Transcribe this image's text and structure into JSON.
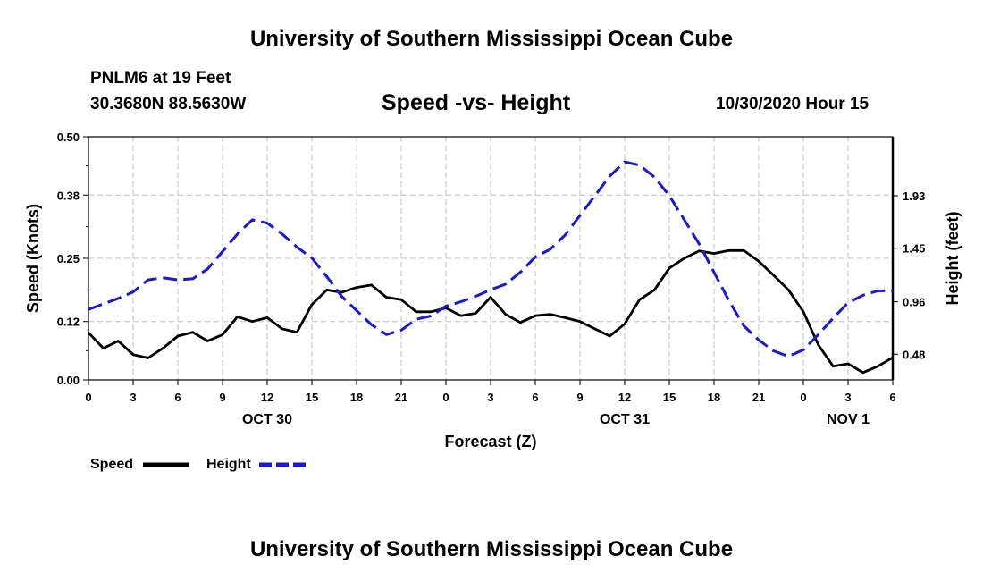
{
  "header": {
    "title": "University of Southern Mississippi Ocean Cube",
    "station": "PNLM6 at 19 Feet",
    "coords": "30.3680N 88.5630W",
    "chart_title": "Speed -vs- Height",
    "date": "10/30/2020 Hour 15"
  },
  "footer": {
    "title": "University of Southern Mississippi Ocean Cube"
  },
  "colors": {
    "speed": "#000000",
    "height": "#1a1acd",
    "grid": "#bfbfbf"
  },
  "chart_data": {
    "type": "line",
    "title": "Speed -vs- Height",
    "xlabel": "Forecast (Z)",
    "ylabel": "Speed (Knots)",
    "y2label": "Height (feet)",
    "x_unit": "hours from Oct 30 00Z",
    "xlim": [
      0,
      54
    ],
    "ylim": [
      0,
      0.5
    ],
    "y2lim": [
      0.245,
      2.47
    ],
    "x_ticks": [
      0,
      3,
      6,
      9,
      12,
      15,
      18,
      21,
      24,
      27,
      30,
      33,
      36,
      39,
      42,
      45,
      48,
      51,
      54
    ],
    "x_tick_labels": [
      "0",
      "3",
      "6",
      "9",
      "12",
      "15",
      "18",
      "21",
      "0",
      "3",
      "6",
      "9",
      "12",
      "15",
      "18",
      "21",
      "0",
      "3",
      "6"
    ],
    "y_ticks": [
      0,
      0.12,
      0.25,
      0.38,
      0.5
    ],
    "y_tick_labels": [
      "0.00",
      "0.12",
      "0.25",
      "0.38",
      "0.50"
    ],
    "y2_ticks": [
      0.48,
      0.96,
      1.45,
      1.93
    ],
    "y2_tick_labels": [
      "0.48",
      "0.96",
      "1.45",
      "1.93"
    ],
    "date_labels": [
      {
        "x": 12,
        "label": "OCT 30"
      },
      {
        "x": 36,
        "label": "OCT 31"
      },
      {
        "x": 51,
        "label": "NOV 1"
      }
    ],
    "grid": true,
    "legend": [
      {
        "name": "Speed",
        "style": "solid",
        "color": "#000000"
      },
      {
        "name": "Height",
        "style": "dashed",
        "color": "#1a1acd"
      }
    ],
    "series": [
      {
        "name": "Speed",
        "axis": "left",
        "x": [
          0,
          1,
          2,
          3,
          4,
          5,
          6,
          7,
          8,
          9,
          10,
          11,
          12,
          13,
          14,
          15,
          16,
          17,
          18,
          19,
          20,
          21,
          22,
          23,
          24,
          25,
          26,
          27,
          28,
          29,
          30,
          31,
          32,
          33,
          34,
          35,
          36,
          37,
          38,
          39,
          40,
          41,
          42,
          43,
          44,
          45,
          46,
          47,
          48,
          49,
          50,
          51,
          52,
          53,
          54
        ],
        "values": [
          0.097,
          0.065,
          0.08,
          0.052,
          0.045,
          0.065,
          0.09,
          0.098,
          0.08,
          0.093,
          0.13,
          0.12,
          0.128,
          0.105,
          0.098,
          0.155,
          0.185,
          0.18,
          0.19,
          0.195,
          0.17,
          0.165,
          0.14,
          0.14,
          0.148,
          0.132,
          0.137,
          0.17,
          0.135,
          0.118,
          0.132,
          0.135,
          0.128,
          0.12,
          0.105,
          0.09,
          0.115,
          0.165,
          0.185,
          0.23,
          0.25,
          0.265,
          0.26,
          0.266,
          0.266,
          0.244,
          0.215,
          0.185,
          0.14,
          0.072,
          0.028,
          0.033,
          0.015,
          0.028,
          0.046
        ]
      },
      {
        "name": "Height",
        "axis": "right",
        "x": [
          0,
          1,
          2,
          3,
          4,
          5,
          6,
          7,
          8,
          9,
          10,
          11,
          12,
          13,
          14,
          15,
          16,
          17,
          18,
          19,
          20,
          21,
          22,
          23,
          24,
          25,
          26,
          27,
          28,
          29,
          30,
          31,
          32,
          33,
          34,
          35,
          36,
          37,
          38,
          39,
          40,
          41,
          42,
          43,
          44,
          45,
          46,
          47,
          48,
          49,
          50,
          51,
          52,
          53,
          54
        ],
        "values": [
          0.89,
          0.94,
          0.99,
          1.05,
          1.16,
          1.18,
          1.16,
          1.17,
          1.26,
          1.42,
          1.58,
          1.71,
          1.68,
          1.58,
          1.46,
          1.36,
          1.19,
          1.01,
          0.88,
          0.75,
          0.66,
          0.7,
          0.8,
          0.83,
          0.92,
          0.96,
          1.01,
          1.07,
          1.12,
          1.23,
          1.37,
          1.44,
          1.57,
          1.75,
          1.93,
          2.11,
          2.24,
          2.21,
          2.1,
          1.93,
          1.71,
          1.49,
          1.23,
          0.97,
          0.74,
          0.61,
          0.51,
          0.46,
          0.52,
          0.66,
          0.81,
          0.95,
          1.02,
          1.06,
          1.06
        ]
      }
    ]
  }
}
